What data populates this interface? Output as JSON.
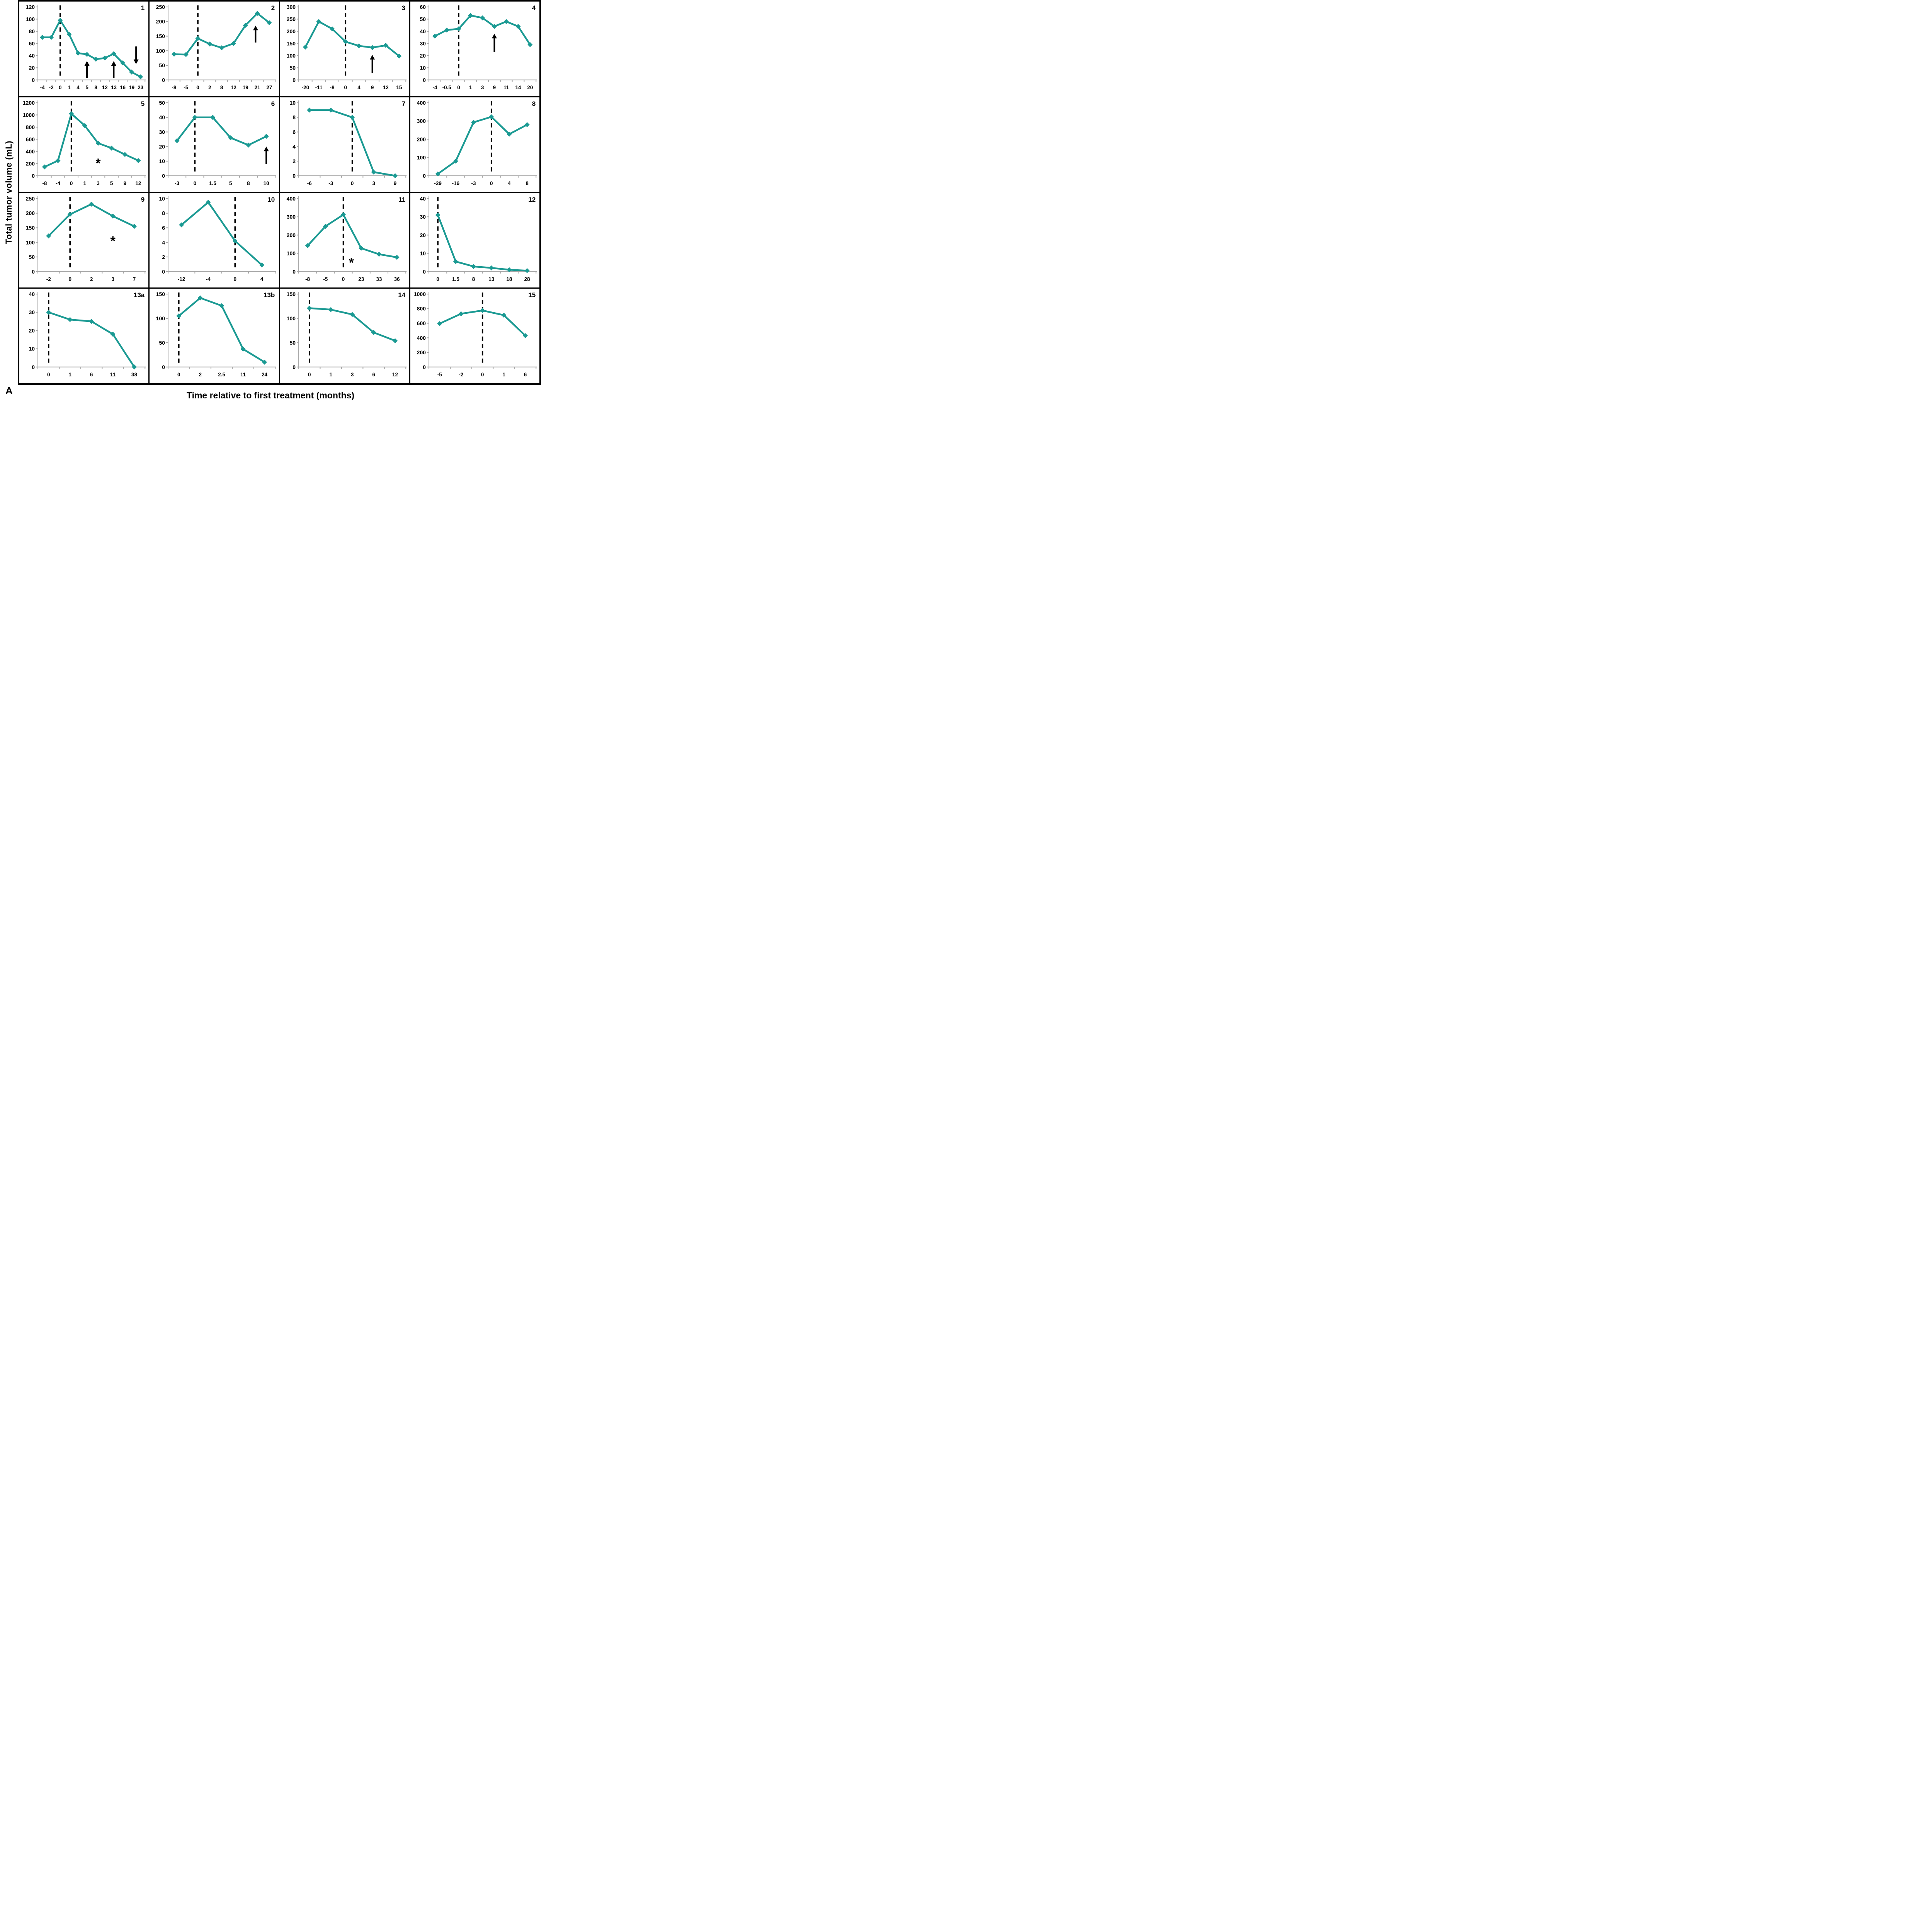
{
  "figure": {
    "corner_label": "A",
    "y_axis_title": "Total tumor volume (mL)",
    "x_axis_title": "Time relative to first treatment (months)",
    "accent_color": "#1b9a93",
    "axis_color": "#a6a6a6",
    "annotation_color": "#000000"
  },
  "chart_data": [
    {
      "id": "1",
      "type": "line",
      "categories": [
        "-4",
        "-2",
        "0",
        "1",
        "4",
        "5",
        "8",
        "12",
        "13",
        "16",
        "19",
        "23"
      ],
      "values": [
        70,
        70,
        98,
        75,
        44,
        42,
        34,
        36,
        43,
        28,
        13,
        5
      ],
      "ylim": [
        0,
        120
      ],
      "ystep": 20,
      "zero_line_index": 2,
      "arrows": [
        {
          "i": 5,
          "y1": 3,
          "y2": 31,
          "dir": "up"
        },
        {
          "i": 8,
          "y1": 3,
          "y2": 31,
          "dir": "up"
        },
        {
          "i": 10.5,
          "y1": 55,
          "y2": 26,
          "dir": "down"
        }
      ],
      "asterisks": []
    },
    {
      "id": "2",
      "type": "line",
      "categories": [
        "-8",
        "-5",
        "0",
        "2",
        "8",
        "12",
        "19",
        "21",
        "27"
      ],
      "values": [
        88,
        87,
        142,
        123,
        110,
        125,
        187,
        228,
        196
      ],
      "ylim": [
        0,
        250
      ],
      "ystep": 50,
      "zero_line_index": 2,
      "arrows": [
        {
          "i": 6.85,
          "y1": 128,
          "y2": 186,
          "dir": "up"
        }
      ],
      "asterisks": []
    },
    {
      "id": "3",
      "type": "line",
      "categories": [
        "-20",
        "-11",
        "-8",
        "0",
        "4",
        "9",
        "12",
        "15"
      ],
      "values": [
        135,
        240,
        210,
        157,
        140,
        133,
        142,
        98
      ],
      "ylim": [
        0,
        300
      ],
      "ystep": 50,
      "zero_line_index": 3,
      "arrows": [
        {
          "i": 5,
          "y1": 28,
          "y2": 103,
          "dir": "up"
        }
      ],
      "asterisks": []
    },
    {
      "id": "4",
      "type": "line",
      "categories": [
        "-4",
        "-0.5",
        "0",
        "1",
        "3",
        "9",
        "11",
        "14",
        "20"
      ],
      "values": [
        36,
        41,
        42,
        53,
        51,
        44,
        48,
        44,
        29
      ],
      "ylim": [
        0,
        60
      ],
      "ystep": 10,
      "zero_line_index": 2,
      "arrows": [
        {
          "i": 5,
          "y1": 23,
          "y2": 38,
          "dir": "up"
        }
      ],
      "asterisks": []
    },
    {
      "id": "5",
      "type": "line",
      "categories": [
        "-8",
        "-4",
        "0",
        "1",
        "3",
        "5",
        "9",
        "12"
      ],
      "values": [
        145,
        248,
        1020,
        825,
        535,
        455,
        350,
        250
      ],
      "ylim": [
        0,
        1200
      ],
      "ystep": 200,
      "zero_line_index": 2,
      "arrows": [],
      "asterisks": [
        {
          "i": 4,
          "y": 215
        }
      ]
    },
    {
      "id": "6",
      "type": "line",
      "categories": [
        "-3",
        "0",
        "1.5",
        "5",
        "8",
        "10"
      ],
      "values": [
        24,
        40,
        40,
        26,
        21,
        27
      ],
      "ylim": [
        0,
        50
      ],
      "ystep": 10,
      "zero_line_index": 1,
      "arrows": [
        {
          "i": 5,
          "y1": 8,
          "y2": 20,
          "dir": "up"
        }
      ],
      "asterisks": []
    },
    {
      "id": "7",
      "type": "line",
      "categories": [
        "-6",
        "-3",
        "0",
        "3",
        "9"
      ],
      "values": [
        9,
        9,
        8,
        0.5,
        0
      ],
      "ylim": [
        0,
        10
      ],
      "ystep": 2,
      "zero_line_index": 2,
      "arrows": [],
      "asterisks": []
    },
    {
      "id": "8",
      "type": "line",
      "categories": [
        "-29",
        "-16",
        "-3",
        "0",
        "4",
        "8"
      ],
      "values": [
        10,
        80,
        293,
        323,
        228,
        280
      ],
      "ylim": [
        0,
        400
      ],
      "ystep": 100,
      "zero_line_index": 3,
      "arrows": [],
      "asterisks": []
    },
    {
      "id": "9",
      "type": "line",
      "categories": [
        "-2",
        "0",
        "2",
        "3",
        "7"
      ],
      "values": [
        122,
        196,
        231,
        190,
        155
      ],
      "ylim": [
        0,
        250
      ],
      "ystep": 50,
      "zero_line_index": 1,
      "arrows": [],
      "asterisks": [
        {
          "i": 3,
          "y": 107
        }
      ]
    },
    {
      "id": "10",
      "type": "line",
      "categories": [
        "-12",
        "-4",
        "0",
        "4"
      ],
      "values": [
        6.4,
        9.5,
        4.2,
        0.9
      ],
      "ylim": [
        0,
        10
      ],
      "ystep": 2,
      "zero_line_index": 2,
      "arrows": [],
      "asterisks": []
    },
    {
      "id": "11",
      "type": "line",
      "categories": [
        "-8",
        "-5",
        "0",
        "23",
        "33",
        "36"
      ],
      "values": [
        142,
        248,
        312,
        128,
        95,
        78
      ],
      "ylim": [
        0,
        400
      ],
      "ystep": 100,
      "zero_line_index": 2,
      "arrows": [],
      "asterisks": [
        {
          "i": 2.45,
          "y": 52
        }
      ]
    },
    {
      "id": "12",
      "type": "line",
      "categories": [
        "0",
        "1.5",
        "8",
        "13",
        "18",
        "28"
      ],
      "values": [
        31,
        5.5,
        2.8,
        2,
        1,
        0.5
      ],
      "ylim": [
        0,
        40
      ],
      "ystep": 10,
      "zero_line_index": 0,
      "arrows": [],
      "asterisks": []
    },
    {
      "id": "13a",
      "type": "line",
      "categories": [
        "0",
        "1",
        "6",
        "11",
        "38"
      ],
      "values": [
        30,
        26,
        25,
        18,
        0
      ],
      "ylim": [
        0,
        40
      ],
      "ystep": 10,
      "zero_line_index": 0,
      "arrows": [],
      "asterisks": []
    },
    {
      "id": "13b",
      "type": "line",
      "categories": [
        "0",
        "2",
        "2.5",
        "11",
        "24"
      ],
      "values": [
        105,
        142,
        126,
        37,
        10
      ],
      "ylim": [
        0,
        150
      ],
      "ystep": 50,
      "zero_line_index": 0,
      "arrows": [],
      "asterisks": []
    },
    {
      "id": "14",
      "type": "line",
      "categories": [
        "0",
        "1",
        "3",
        "6",
        "12"
      ],
      "values": [
        121,
        118,
        108,
        71,
        54
      ],
      "ylim": [
        0,
        150
      ],
      "ystep": 50,
      "zero_line_index": 0,
      "arrows": [],
      "asterisks": []
    },
    {
      "id": "15",
      "type": "line",
      "categories": [
        "-5",
        "-2",
        "0",
        "1",
        "6"
      ],
      "values": [
        595,
        730,
        775,
        710,
        430
      ],
      "ylim": [
        0,
        1000
      ],
      "ystep": 200,
      "zero_line_index": 2,
      "arrows": [],
      "asterisks": []
    }
  ]
}
